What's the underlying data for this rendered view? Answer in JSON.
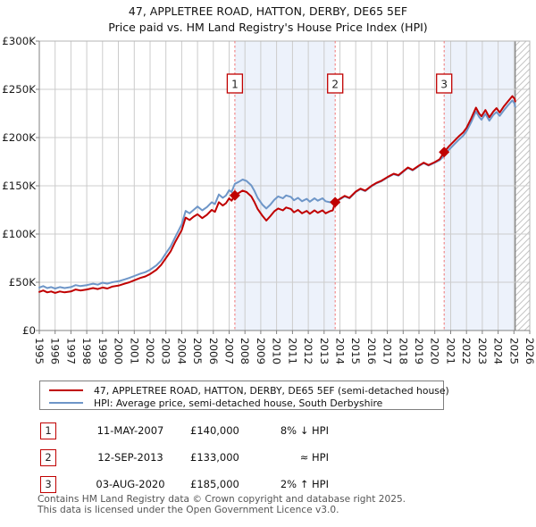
{
  "title": {
    "line1": "47, APPLETREE ROAD, HATTON, DERBY, DE65 5EF",
    "line2": "Price paid vs. HM Land Registry's House Price Index (HPI)"
  },
  "chart_data": {
    "type": "line",
    "xlim": [
      1995,
      2026
    ],
    "ylim": [
      0,
      300000
    ],
    "grid": true,
    "legend_position": "bottom",
    "x_ticks": [
      1995,
      1996,
      1997,
      1998,
      1999,
      2000,
      2001,
      2002,
      2003,
      2004,
      2005,
      2006,
      2007,
      2008,
      2009,
      2010,
      2011,
      2012,
      2013,
      2014,
      2015,
      2016,
      2017,
      2018,
      2019,
      2020,
      2021,
      2022,
      2023,
      2024,
      2025,
      2026
    ],
    "y_ticks": [
      {
        "v": 0,
        "label": "£0"
      },
      {
        "v": 50000,
        "label": "£50K"
      },
      {
        "v": 100000,
        "label": "£100K"
      },
      {
        "v": 150000,
        "label": "£150K"
      },
      {
        "v": 200000,
        "label": "£200K"
      },
      {
        "v": 250000,
        "label": "£250K"
      },
      {
        "v": 300000,
        "label": "£300K"
      }
    ],
    "colors": {
      "red": "#c00000",
      "blue": "#6e96c8",
      "dashed": "#f08080",
      "band": "#edf2fb",
      "grid": "#cccccc",
      "border": "#b5b5b5",
      "axis": "#808080",
      "hatch": "#c4c4c4",
      "text": "#1a1a1a"
    },
    "shaded_bands": [
      [
        2007.36,
        2013.7
      ],
      [
        2020.59,
        2025.08
      ]
    ],
    "hatched_band": [
      2025.08,
      2026
    ],
    "sales": [
      {
        "label": "1",
        "x": 2007.36,
        "price": 140000,
        "date": "11-MAY-2007",
        "relation": "8% ↓ HPI"
      },
      {
        "label": "2",
        "x": 2013.7,
        "price": 133000,
        "date": "12-SEP-2013",
        "relation": "≈ HPI"
      },
      {
        "label": "3",
        "x": 2020.59,
        "price": 185000,
        "date": "03-AUG-2020",
        "relation": "2% ↑ HPI"
      }
    ],
    "series": [
      {
        "name": "47, APPLETREE ROAD, HATTON, DERBY, DE65 5EF (semi-detached house)",
        "color": "#c00000",
        "points": [
          [
            1995.0,
            40000
          ],
          [
            1995.25,
            41500
          ],
          [
            1995.5,
            39500
          ],
          [
            1995.75,
            40500
          ],
          [
            1996.0,
            39000
          ],
          [
            1996.3,
            40500
          ],
          [
            1996.6,
            39500
          ],
          [
            1997.0,
            40500
          ],
          [
            1997.3,
            42500
          ],
          [
            1997.6,
            41500
          ],
          [
            1998.0,
            42500
          ],
          [
            1998.4,
            44000
          ],
          [
            1998.7,
            43000
          ],
          [
            1999.0,
            44500
          ],
          [
            1999.3,
            43500
          ],
          [
            1999.6,
            45500
          ],
          [
            2000.0,
            46500
          ],
          [
            2000.4,
            48500
          ],
          [
            2000.7,
            50000
          ],
          [
            2001.0,
            52000
          ],
          [
            2001.4,
            54500
          ],
          [
            2001.7,
            56000
          ],
          [
            2002.0,
            58500
          ],
          [
            2002.4,
            63000
          ],
          [
            2002.7,
            68000
          ],
          [
            2003.0,
            75000
          ],
          [
            2003.3,
            82000
          ],
          [
            2003.6,
            92000
          ],
          [
            2004.0,
            104000
          ],
          [
            2004.25,
            117000
          ],
          [
            2004.5,
            114500
          ],
          [
            2004.75,
            118000
          ],
          [
            2005.0,
            120500
          ],
          [
            2005.3,
            116500
          ],
          [
            2005.6,
            120000
          ],
          [
            2005.9,
            125000
          ],
          [
            2006.1,
            123000
          ],
          [
            2006.35,
            133000
          ],
          [
            2006.6,
            129500
          ],
          [
            2006.8,
            132000
          ],
          [
            2007.0,
            137000
          ],
          [
            2007.15,
            134500
          ],
          [
            2007.36,
            140000
          ],
          [
            2007.6,
            142500
          ],
          [
            2007.85,
            145000
          ],
          [
            2008.1,
            143500
          ],
          [
            2008.4,
            139000
          ],
          [
            2008.6,
            133000
          ],
          [
            2008.8,
            126000
          ],
          [
            2009.1,
            119000
          ],
          [
            2009.35,
            114000
          ],
          [
            2009.6,
            118500
          ],
          [
            2009.85,
            123500
          ],
          [
            2010.1,
            126500
          ],
          [
            2010.4,
            124500
          ],
          [
            2010.6,
            127500
          ],
          [
            2010.9,
            126000
          ],
          [
            2011.1,
            122500
          ],
          [
            2011.35,
            125000
          ],
          [
            2011.6,
            121500
          ],
          [
            2011.9,
            124000
          ],
          [
            2012.1,
            121000
          ],
          [
            2012.4,
            124500
          ],
          [
            2012.6,
            122000
          ],
          [
            2012.9,
            124500
          ],
          [
            2013.1,
            121500
          ],
          [
            2013.35,
            123500
          ],
          [
            2013.55,
            124500
          ],
          [
            2013.7,
            133000
          ],
          [
            2014.0,
            136500
          ],
          [
            2014.3,
            139500
          ],
          [
            2014.6,
            137500
          ],
          [
            2015.0,
            144000
          ],
          [
            2015.3,
            147000
          ],
          [
            2015.6,
            145000
          ],
          [
            2016.0,
            150000
          ],
          [
            2016.3,
            153000
          ],
          [
            2016.6,
            155000
          ],
          [
            2017.0,
            159000
          ],
          [
            2017.4,
            162500
          ],
          [
            2017.7,
            161000
          ],
          [
            2018.0,
            165000
          ],
          [
            2018.3,
            169000
          ],
          [
            2018.6,
            166500
          ],
          [
            2019.0,
            171000
          ],
          [
            2019.3,
            174000
          ],
          [
            2019.6,
            171500
          ],
          [
            2020.0,
            174500
          ],
          [
            2020.3,
            177500
          ],
          [
            2020.59,
            185000
          ],
          [
            2020.9,
            191000
          ],
          [
            2021.2,
            196000
          ],
          [
            2021.5,
            201000
          ],
          [
            2021.8,
            205500
          ],
          [
            2022.0,
            210000
          ],
          [
            2022.3,
            220000
          ],
          [
            2022.6,
            231000
          ],
          [
            2022.8,
            225000
          ],
          [
            2022.95,
            222000
          ],
          [
            2023.2,
            228500
          ],
          [
            2023.45,
            221000
          ],
          [
            2023.7,
            227000
          ],
          [
            2023.9,
            230500
          ],
          [
            2024.1,
            226000
          ],
          [
            2024.35,
            232000
          ],
          [
            2024.6,
            237000
          ],
          [
            2024.9,
            243000
          ],
          [
            2025.05,
            240000
          ],
          [
            2025.08,
            237500
          ]
        ]
      },
      {
        "name": "HPI: Average price, semi-detached house, South Derbyshire",
        "color": "#6e96c8",
        "points": [
          [
            1995.0,
            44500
          ],
          [
            1995.25,
            46000
          ],
          [
            1995.5,
            44000
          ],
          [
            1995.75,
            45000
          ],
          [
            1996.0,
            43500
          ],
          [
            1996.3,
            45000
          ],
          [
            1996.6,
            44000
          ],
          [
            1997.0,
            45000
          ],
          [
            1997.3,
            47000
          ],
          [
            1997.6,
            46000
          ],
          [
            1998.0,
            47000
          ],
          [
            1998.4,
            48500
          ],
          [
            1998.7,
            47500
          ],
          [
            1999.0,
            49500
          ],
          [
            1999.3,
            48500
          ],
          [
            1999.6,
            50000
          ],
          [
            2000.0,
            51000
          ],
          [
            2000.4,
            53000
          ],
          [
            2000.7,
            54500
          ],
          [
            2001.0,
            56500
          ],
          [
            2001.4,
            59000
          ],
          [
            2001.7,
            60500
          ],
          [
            2002.0,
            63000
          ],
          [
            2002.4,
            67500
          ],
          [
            2002.7,
            72500
          ],
          [
            2003.0,
            80000
          ],
          [
            2003.3,
            87000
          ],
          [
            2003.6,
            97000
          ],
          [
            2004.0,
            110000
          ],
          [
            2004.25,
            124000
          ],
          [
            2004.5,
            121500
          ],
          [
            2004.75,
            125000
          ],
          [
            2005.0,
            128500
          ],
          [
            2005.3,
            124500
          ],
          [
            2005.6,
            128000
          ],
          [
            2005.9,
            133000
          ],
          [
            2006.1,
            131000
          ],
          [
            2006.35,
            141000
          ],
          [
            2006.6,
            137500
          ],
          [
            2006.8,
            140000
          ],
          [
            2007.0,
            145500
          ],
          [
            2007.15,
            143500
          ],
          [
            2007.36,
            152000
          ],
          [
            2007.6,
            154000
          ],
          [
            2007.85,
            156500
          ],
          [
            2008.1,
            155000
          ],
          [
            2008.4,
            150500
          ],
          [
            2008.6,
            144500
          ],
          [
            2008.8,
            137500
          ],
          [
            2009.1,
            130500
          ],
          [
            2009.35,
            126500
          ],
          [
            2009.6,
            130500
          ],
          [
            2009.85,
            135500
          ],
          [
            2010.1,
            139000
          ],
          [
            2010.4,
            137000
          ],
          [
            2010.6,
            140000
          ],
          [
            2010.9,
            138500
          ],
          [
            2011.1,
            135000
          ],
          [
            2011.35,
            137500
          ],
          [
            2011.6,
            134000
          ],
          [
            2011.9,
            136500
          ],
          [
            2012.1,
            133500
          ],
          [
            2012.4,
            137000
          ],
          [
            2012.6,
            134500
          ],
          [
            2012.9,
            137000
          ],
          [
            2013.1,
            134000
          ],
          [
            2013.35,
            133000
          ],
          [
            2013.55,
            134000
          ],
          [
            2013.7,
            133500
          ],
          [
            2014.0,
            136000
          ],
          [
            2014.3,
            139000
          ],
          [
            2014.6,
            137000
          ],
          [
            2015.0,
            143500
          ],
          [
            2015.3,
            146500
          ],
          [
            2015.6,
            144500
          ],
          [
            2016.0,
            149500
          ],
          [
            2016.3,
            152500
          ],
          [
            2016.6,
            154500
          ],
          [
            2017.0,
            158500
          ],
          [
            2017.4,
            162000
          ],
          [
            2017.7,
            160500
          ],
          [
            2018.0,
            164500
          ],
          [
            2018.3,
            168500
          ],
          [
            2018.6,
            166000
          ],
          [
            2019.0,
            170500
          ],
          [
            2019.3,
            173500
          ],
          [
            2019.6,
            171000
          ],
          [
            2020.0,
            174000
          ],
          [
            2020.3,
            176500
          ],
          [
            2020.59,
            181000
          ],
          [
            2020.9,
            187500
          ],
          [
            2021.2,
            192500
          ],
          [
            2021.5,
            197500
          ],
          [
            2021.8,
            202000
          ],
          [
            2022.0,
            206500
          ],
          [
            2022.3,
            216000
          ],
          [
            2022.6,
            227000
          ],
          [
            2022.8,
            221500
          ],
          [
            2022.95,
            218500
          ],
          [
            2023.2,
            224500
          ],
          [
            2023.45,
            217500
          ],
          [
            2023.7,
            223500
          ],
          [
            2023.9,
            226500
          ],
          [
            2024.1,
            222500
          ],
          [
            2024.35,
            228000
          ],
          [
            2024.6,
            233000
          ],
          [
            2024.9,
            238500
          ],
          [
            2025.05,
            235000
          ],
          [
            2025.08,
            232000
          ]
        ]
      }
    ]
  },
  "table": {
    "rows": [
      {
        "num": "1",
        "date": "11-MAY-2007",
        "price": "£140,000",
        "relation": "8% ↓ HPI"
      },
      {
        "num": "2",
        "date": "12-SEP-2013",
        "price": "£133,000",
        "relation": "≈ HPI"
      },
      {
        "num": "3",
        "date": "03-AUG-2020",
        "price": "£185,000",
        "relation": "2% ↑ HPI"
      }
    ]
  },
  "footer": {
    "line1": "Contains HM Land Registry data © Crown copyright and database right 2025.",
    "line2": "This data is licensed under the Open Government Licence v3.0."
  }
}
